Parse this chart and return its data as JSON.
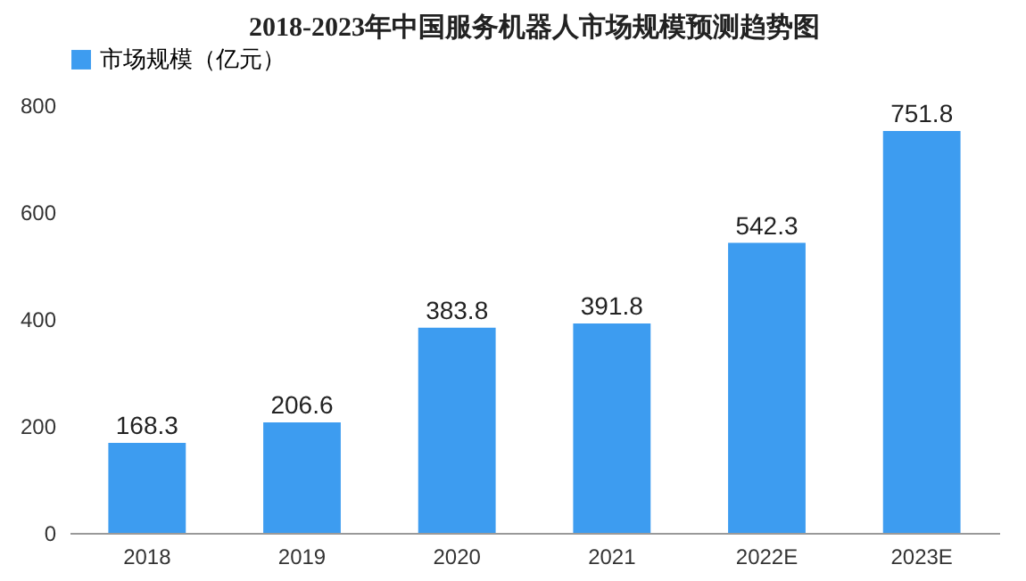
{
  "chart_data": {
    "type": "bar",
    "title": "2018-2023年中国服务机器人市场规模预测趋势图",
    "categories": [
      "2018",
      "2019",
      "2020",
      "2021",
      "2022E",
      "2023E"
    ],
    "series": [
      {
        "name": "市场规模（亿元）",
        "color": "#3d9cf0",
        "values": [
          168.3,
          206.6,
          383.8,
          391.8,
          542.3,
          751.8
        ]
      }
    ],
    "ylim": [
      0,
      800
    ],
    "yticks": [
      0,
      200,
      400,
      600,
      800
    ],
    "grid": false,
    "legend": "top",
    "data_labels": true
  }
}
